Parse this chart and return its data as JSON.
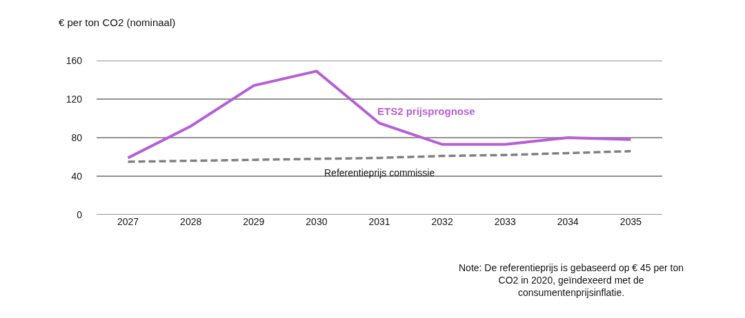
{
  "chart_data": {
    "type": "line",
    "ylabel": "€ per ton CO2 (nominaal)",
    "categories": [
      "2027",
      "2028",
      "2029",
      "2030",
      "2031",
      "2032",
      "2033",
      "2034",
      "2035"
    ],
    "series": [
      {
        "name": "ETS2 prijsprognose",
        "color": "#b65fd6",
        "values": [
          59,
          92,
          134,
          149,
          95,
          73,
          73,
          80,
          78
        ],
        "line_style": "solid"
      },
      {
        "name": "Referentieprijs commissie",
        "color": "#808080",
        "values": [
          55,
          56,
          57,
          58,
          59,
          61,
          62,
          64,
          66
        ],
        "line_style": "dashed"
      }
    ],
    "ylim": [
      0,
      160
    ],
    "yticks": [
      0,
      40,
      80,
      120,
      160
    ],
    "grid": "y",
    "legend": false,
    "marker": "none",
    "annotations": [
      "Note: De referentieprijs is gebaseerd op € 45 per ton CO2 in 2020, geïndexeerd met de consumentenprijsinflatie."
    ]
  }
}
